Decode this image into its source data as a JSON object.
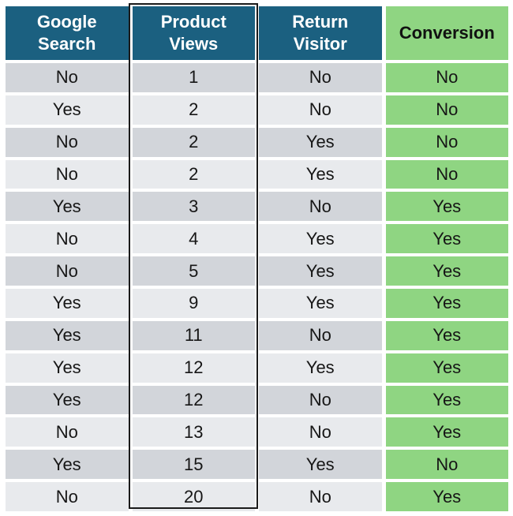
{
  "colors": {
    "header_teal": "#1b6080",
    "conversion_green": "#8fd582",
    "row_dark_gray": "#d2d5da",
    "row_light_gray": "#e8eaed",
    "highlight_border_black": "#1a1a1a",
    "header_text_white": "#ffffff",
    "body_text": "#161616",
    "background": "#ffffff"
  },
  "table": {
    "headers": [
      "Google\nSearch",
      "Product\nViews",
      "Return\nVisitor",
      "Conversion"
    ],
    "rows": [
      [
        "No",
        "1",
        "No",
        "No"
      ],
      [
        "Yes",
        "2",
        "No",
        "No"
      ],
      [
        "No",
        "2",
        "Yes",
        "No"
      ],
      [
        "No",
        "2",
        "Yes",
        "No"
      ],
      [
        "Yes",
        "3",
        "No",
        "Yes"
      ],
      [
        "No",
        "4",
        "Yes",
        "Yes"
      ],
      [
        "No",
        "5",
        "Yes",
        "Yes"
      ],
      [
        "Yes",
        "9",
        "Yes",
        "Yes"
      ],
      [
        "Yes",
        "11",
        "No",
        "Yes"
      ],
      [
        "Yes",
        "12",
        "Yes",
        "Yes"
      ],
      [
        "Yes",
        "12",
        "No",
        "Yes"
      ],
      [
        "No",
        "13",
        "No",
        "Yes"
      ],
      [
        "Yes",
        "15",
        "Yes",
        "No"
      ],
      [
        "No",
        "20",
        "No",
        "Yes"
      ]
    ]
  },
  "chart_data": {
    "type": "table",
    "columns": [
      "Google Search",
      "Product Views",
      "Return Visitor",
      "Conversion"
    ],
    "rows": [
      [
        "No",
        1,
        "No",
        "No"
      ],
      [
        "Yes",
        2,
        "No",
        "No"
      ],
      [
        "No",
        2,
        "Yes",
        "No"
      ],
      [
        "No",
        2,
        "Yes",
        "No"
      ],
      [
        "Yes",
        3,
        "No",
        "Yes"
      ],
      [
        "No",
        4,
        "Yes",
        "Yes"
      ],
      [
        "No",
        5,
        "Yes",
        "Yes"
      ],
      [
        "Yes",
        9,
        "Yes",
        "Yes"
      ],
      [
        "Yes",
        11,
        "No",
        "Yes"
      ],
      [
        "Yes",
        12,
        "Yes",
        "Yes"
      ],
      [
        "Yes",
        12,
        "No",
        "Yes"
      ],
      [
        "No",
        13,
        "No",
        "Yes"
      ],
      [
        "Yes",
        15,
        "Yes",
        "No"
      ],
      [
        "No",
        20,
        "No",
        "Yes"
      ]
    ],
    "highlighted_column": "Product Views",
    "notes": "Conversion column shaded green; Product Views column outlined with black box"
  }
}
